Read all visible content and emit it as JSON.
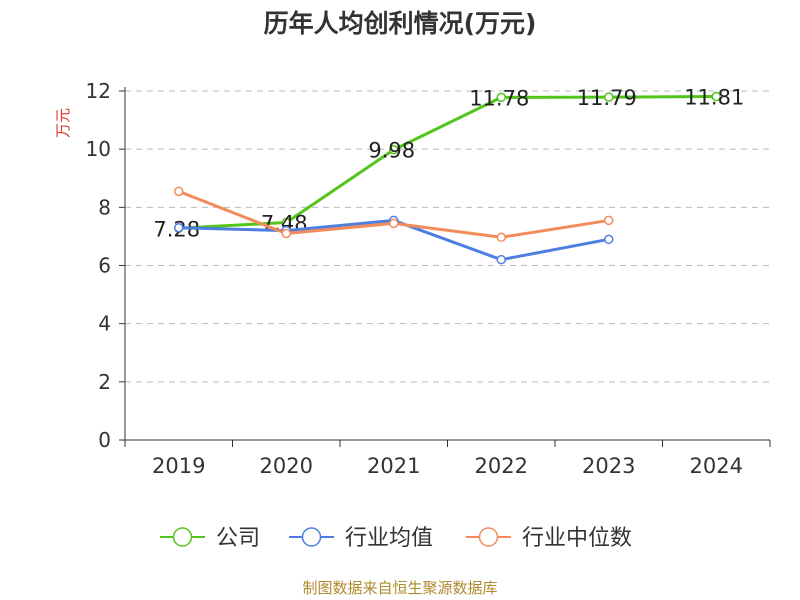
{
  "title": "历年人均创利情况(万元)",
  "source_note": "制图数据来自恒生聚源数据库",
  "colors": {
    "background": "#ffffff",
    "axis": "#333333",
    "grid": "#bbbbbb",
    "ylabel": "#e0342b",
    "source": "#b08a2e"
  },
  "chart_data": {
    "type": "line",
    "categories": [
      "2019",
      "2020",
      "2021",
      "2022",
      "2023",
      "2024"
    ],
    "ylabel": "万元",
    "xlabel": "",
    "ylim": [
      0,
      12
    ],
    "yticks": [
      0,
      2,
      4,
      6,
      8,
      10,
      12
    ],
    "grid": true,
    "legend_position": "bottom",
    "series": [
      {
        "name": "公司",
        "color": "#52c41a",
        "values": [
          7.28,
          7.48,
          9.98,
          11.78,
          11.79,
          11.81
        ],
        "labels": [
          "7.28",
          "7.48",
          "9.98",
          "11.78",
          "11.79",
          "11.81"
        ],
        "show_labels": true
      },
      {
        "name": "行业均值",
        "color": "#4e7fe0",
        "values": [
          7.3,
          7.2,
          7.55,
          6.2,
          6.9,
          null
        ],
        "show_labels": false
      },
      {
        "name": "行业中位数",
        "color": "#f28c5a",
        "values": [
          8.55,
          7.1,
          7.45,
          6.97,
          7.55,
          null
        ],
        "show_labels": false
      }
    ]
  }
}
